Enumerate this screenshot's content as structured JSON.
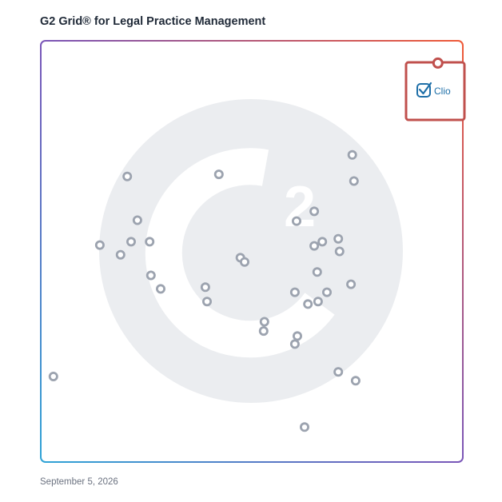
{
  "title": "G2 Grid® for Legal Practice Management",
  "date": "September 5, 2026",
  "colors": {
    "dot": "#9ca3af",
    "highlight": "#c0504d",
    "watermark": "#ebedf0",
    "axis_x": "#3b82c4",
    "axis_y": "#8b5fbf",
    "logo": "#1e6fa8"
  },
  "chart_data": {
    "type": "scatter",
    "title": "G2 Grid® for Legal Practice Management",
    "xlabel": "",
    "ylabel": "",
    "xlim": [
      0,
      100
    ],
    "ylim": [
      0,
      100
    ],
    "quadrant_split": [
      50,
      50
    ],
    "grid": false,
    "highlight": {
      "label": "Clio",
      "x": 94.1,
      "y": 94.7,
      "icon": "clio-check-icon"
    },
    "points": [
      {
        "x": 20.5,
        "y": 67.8
      },
      {
        "x": 42.2,
        "y": 68.3
      },
      {
        "x": 73.8,
        "y": 72.9
      },
      {
        "x": 74.2,
        "y": 66.7
      },
      {
        "x": 22.9,
        "y": 57.4
      },
      {
        "x": 14.0,
        "y": 51.5
      },
      {
        "x": 21.4,
        "y": 52.3
      },
      {
        "x": 25.8,
        "y": 52.3
      },
      {
        "x": 18.9,
        "y": 49.2
      },
      {
        "x": 60.6,
        "y": 57.2
      },
      {
        "x": 64.8,
        "y": 59.5
      },
      {
        "x": 64.8,
        "y": 51.3
      },
      {
        "x": 66.7,
        "y": 52.3
      },
      {
        "x": 70.5,
        "y": 53.0
      },
      {
        "x": 70.8,
        "y": 50.0
      },
      {
        "x": 47.3,
        "y": 48.5
      },
      {
        "x": 48.3,
        "y": 47.5
      },
      {
        "x": 26.1,
        "y": 44.3
      },
      {
        "x": 28.4,
        "y": 41.1
      },
      {
        "x": 65.5,
        "y": 45.1
      },
      {
        "x": 73.5,
        "y": 42.2
      },
      {
        "x": 39.0,
        "y": 41.5
      },
      {
        "x": 39.4,
        "y": 38.1
      },
      {
        "x": 60.2,
        "y": 40.3
      },
      {
        "x": 67.8,
        "y": 40.3
      },
      {
        "x": 63.3,
        "y": 37.5
      },
      {
        "x": 65.7,
        "y": 38.1
      },
      {
        "x": 53.0,
        "y": 33.3
      },
      {
        "x": 52.8,
        "y": 31.1
      },
      {
        "x": 60.8,
        "y": 29.9
      },
      {
        "x": 60.2,
        "y": 28.0
      },
      {
        "x": 3.0,
        "y": 20.3
      },
      {
        "x": 70.5,
        "y": 21.4
      },
      {
        "x": 74.6,
        "y": 19.3
      },
      {
        "x": 62.5,
        "y": 8.3
      }
    ]
  }
}
